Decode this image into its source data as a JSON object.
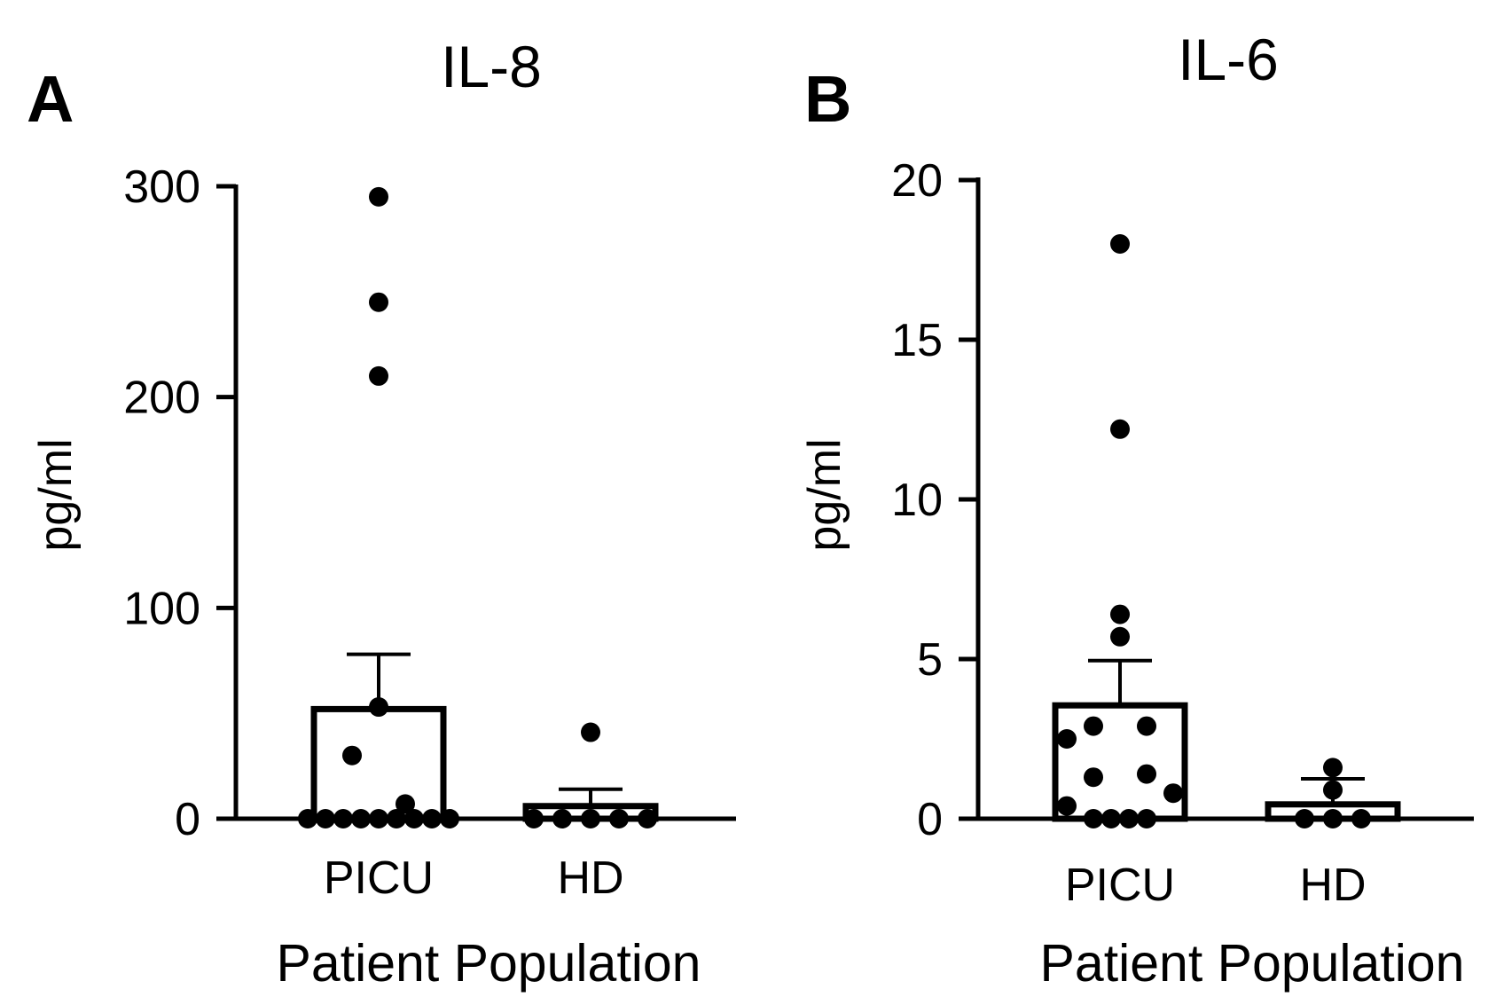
{
  "chart_data": [
    {
      "panel_label": "A",
      "type": "bar",
      "title": "IL-8",
      "ylabel": "pg/ml",
      "xlabel": "Patient Population",
      "ylim": [
        0,
        300
      ],
      "yticks": [
        0,
        100,
        200,
        300
      ],
      "ytick_labels": [
        "0",
        "100",
        "200",
        "300"
      ],
      "categories": [
        "PICU",
        "HD"
      ],
      "bars": [
        {
          "category": "PICU",
          "mean": 52,
          "error_upper": 78
        },
        {
          "category": "HD",
          "mean": 6,
          "error_upper": 14
        }
      ],
      "points": [
        {
          "category": "PICU",
          "values": [
            295,
            245,
            210,
            53,
            30,
            7,
            0,
            0,
            0,
            0,
            0,
            0,
            0,
            0,
            0
          ]
        },
        {
          "category": "HD",
          "values": [
            41,
            0,
            0,
            0,
            0,
            0
          ]
        }
      ]
    },
    {
      "panel_label": "B",
      "type": "bar",
      "title": "IL-6",
      "ylabel": "pg/ml",
      "xlabel": "Patient Population",
      "ylim": [
        0,
        20
      ],
      "yticks": [
        0,
        5,
        10,
        15,
        20
      ],
      "ytick_labels": [
        "0",
        "5",
        "10",
        "15",
        "20"
      ],
      "categories": [
        "PICU",
        "HD"
      ],
      "bars": [
        {
          "category": "PICU",
          "mean": 3.55,
          "error_upper": 4.95
        },
        {
          "category": "HD",
          "mean": 0.45,
          "error_upper": 1.25
        }
      ],
      "points": [
        {
          "category": "PICU",
          "values": [
            18.0,
            12.2,
            6.4,
            5.7,
            2.9,
            2.9,
            2.5,
            1.4,
            1.3,
            0.8,
            0.4,
            0,
            0,
            0,
            0
          ]
        },
        {
          "category": "HD",
          "values": [
            1.6,
            0.9,
            0,
            0,
            0
          ]
        }
      ]
    }
  ],
  "colors": {
    "ink": "#000000",
    "bar_fill": "#ffffff"
  }
}
